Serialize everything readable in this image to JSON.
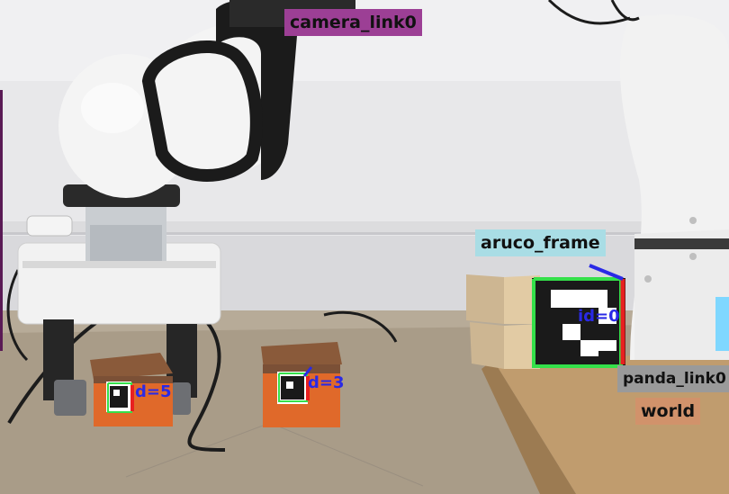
{
  "frame_labels": {
    "camera": "camera_link0",
    "aruco": "aruco_frame",
    "panda": "panda_link0",
    "world": "world"
  },
  "markers": {
    "left_box_id": "d=5",
    "middle_box_id": "d=3",
    "big_marker_id": "id=0"
  },
  "colors": {
    "camera_label_bg": "#9c3f95",
    "aruco_label_bg": "#a9dde5",
    "panda_label_bg": "#9a9a9a",
    "world_label_bg": "#d1926b",
    "marker_border": "#34e04a",
    "axis_x": "#e82020",
    "axis_y": "#2a2ae6"
  }
}
